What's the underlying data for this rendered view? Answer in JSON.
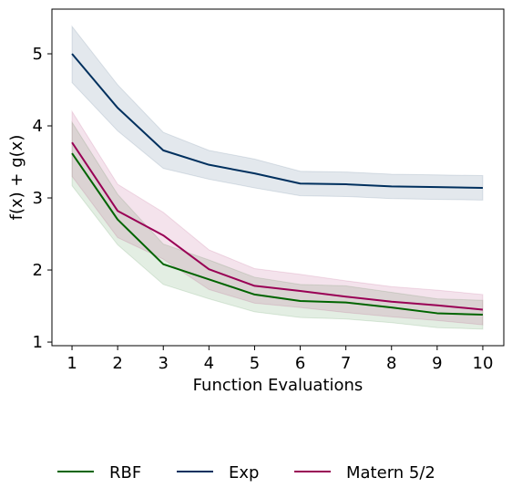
{
  "chart_data": {
    "type": "line",
    "title": "",
    "xlabel": "Function Evaluations",
    "ylabel": "f(x) + g(x)",
    "x": [
      1,
      2,
      3,
      4,
      5,
      6,
      7,
      8,
      9,
      10
    ],
    "xlim": [
      0.56,
      10.46
    ],
    "ylim": [
      0.95,
      5.62
    ],
    "xticks": [
      1,
      2,
      3,
      4,
      5,
      6,
      7,
      8,
      9,
      10
    ],
    "yticks": [
      1,
      2,
      3,
      4,
      5
    ],
    "grid": false,
    "legend_position": "bottom-center",
    "series": [
      {
        "name": "RBF",
        "color": "#006400",
        "values": [
          3.62,
          2.7,
          2.08,
          1.87,
          1.66,
          1.57,
          1.55,
          1.48,
          1.4,
          1.38
        ],
        "lower": [
          3.17,
          2.35,
          1.8,
          1.6,
          1.42,
          1.34,
          1.32,
          1.27,
          1.2,
          1.18
        ],
        "upper": [
          4.05,
          3.05,
          2.36,
          2.14,
          1.9,
          1.8,
          1.78,
          1.69,
          1.6,
          1.58
        ]
      },
      {
        "name": "Exp",
        "color": "#00305E",
        "values": [
          5.0,
          4.25,
          3.66,
          3.46,
          3.34,
          3.2,
          3.19,
          3.16,
          3.15,
          3.14
        ],
        "lower": [
          4.6,
          3.93,
          3.41,
          3.26,
          3.14,
          3.03,
          3.02,
          2.99,
          2.98,
          2.97
        ],
        "upper": [
          5.38,
          4.57,
          3.91,
          3.66,
          3.54,
          3.37,
          3.36,
          3.33,
          3.32,
          3.31
        ]
      },
      {
        "name": "Matern 5/2",
        "color": "#990055",
        "values": [
          3.77,
          2.82,
          2.48,
          2.01,
          1.78,
          1.71,
          1.63,
          1.56,
          1.51,
          1.45
        ],
        "lower": [
          3.3,
          2.45,
          2.15,
          1.73,
          1.54,
          1.48,
          1.41,
          1.35,
          1.3,
          1.24
        ],
        "upper": [
          4.2,
          3.19,
          2.8,
          2.28,
          2.02,
          1.94,
          1.85,
          1.77,
          1.72,
          1.66
        ]
      }
    ]
  }
}
